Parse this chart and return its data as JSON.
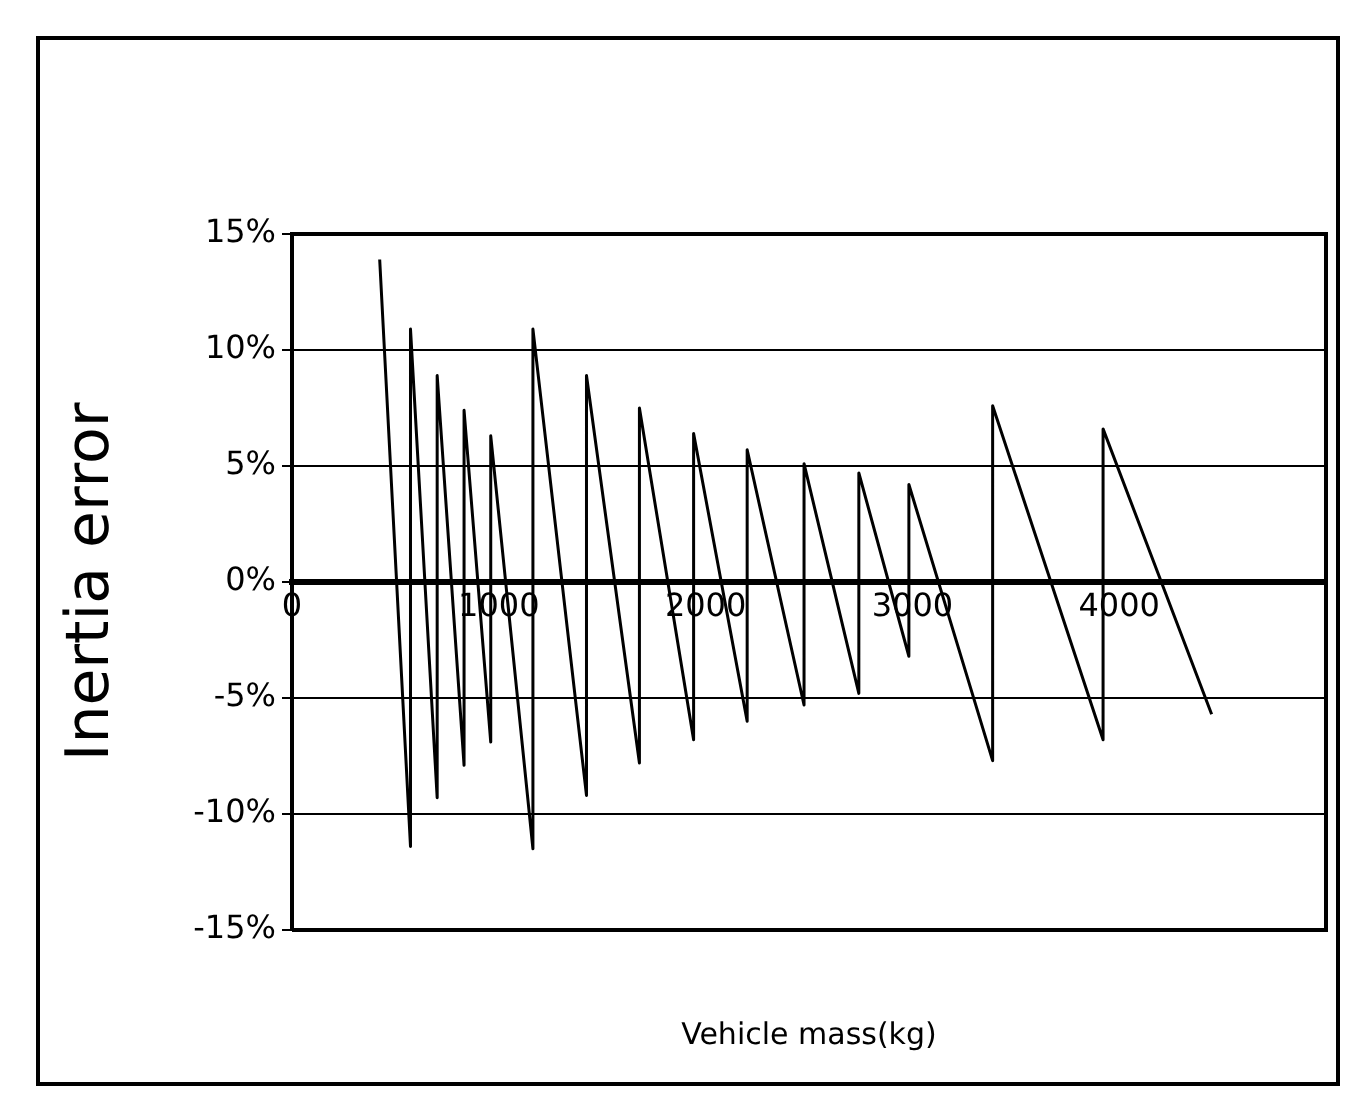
{
  "chart_data": {
    "type": "line",
    "xlabel": "Vehicle mass(kg)",
    "ylabel": "Inertia error",
    "xlim": [
      0,
      5000
    ],
    "xticks": [
      0,
      1000,
      2000,
      3000,
      4000
    ],
    "ylim": [
      -15,
      15
    ],
    "yticks": [
      {
        "value": 15,
        "label": "15%"
      },
      {
        "value": 10,
        "label": "10%"
      },
      {
        "value": 5,
        "label": "5%"
      },
      {
        "value": 0,
        "label": "0%"
      },
      {
        "value": -5,
        "label": "-5%"
      },
      {
        "value": -10,
        "label": "-10%"
      },
      {
        "value": -15,
        "label": "-15%"
      }
    ],
    "grid": "y",
    "legend": false,
    "marker": "none",
    "line_style": "solid",
    "series": [
      {
        "color": "#000000",
        "x": [
          424,
          573,
          573,
          702,
          702,
          832,
          832,
          961,
          961,
          1165,
          1165,
          1424,
          1424,
          1680,
          1680,
          1942,
          1942,
          2201,
          2201,
          2476,
          2476,
          2741,
          2741,
          2983,
          2983,
          3388,
          3388,
          3922,
          3922,
          4447
        ],
        "values": [
          13.9,
          -11.4,
          10.9,
          -9.3,
          8.9,
          -7.9,
          7.4,
          -6.9,
          6.3,
          -11.5,
          10.9,
          -9.2,
          8.9,
          -7.8,
          7.5,
          -6.8,
          6.4,
          -6,
          5.7,
          -5.3,
          5.1,
          -4.8,
          4.7,
          -3.2,
          4.2,
          -7.7,
          7.6,
          -6.8,
          6.6,
          -5.7
        ]
      }
    ]
  }
}
